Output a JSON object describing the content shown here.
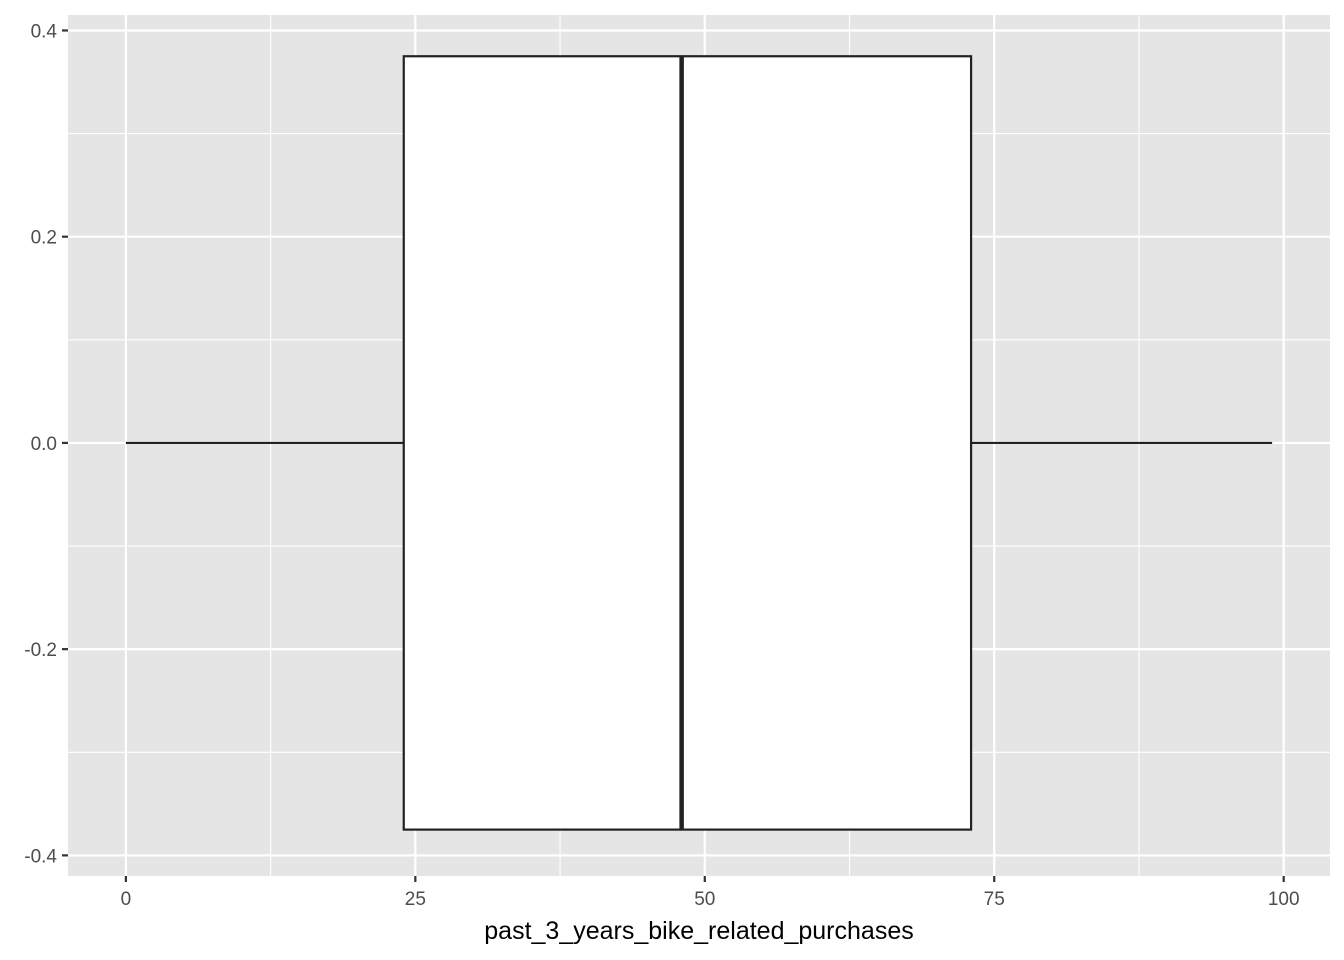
{
  "chart_data": {
    "type": "boxplot",
    "title": "",
    "xlabel": "past_3_years_bike_related_purchases",
    "ylabel": "",
    "xlim": [
      -5,
      104
    ],
    "ylim": [
      -0.42,
      0.415
    ],
    "x_ticks": [
      0,
      25,
      50,
      75,
      100
    ],
    "x_tick_labels": [
      "0",
      "25",
      "50",
      "75",
      "100"
    ],
    "y_ticks": [
      -0.4,
      -0.2,
      0.0,
      0.2,
      0.4
    ],
    "y_tick_labels": [
      "-0.4",
      "-0.2",
      "0.0",
      "0.2",
      "0.4"
    ],
    "grid": true,
    "legend": "none",
    "box": {
      "min": 0,
      "q1": 24,
      "median": 48,
      "q3": 73,
      "max": 99,
      "y_center": 0,
      "half_width": 0.375
    },
    "colors": {
      "panel_background": "#e5e5e5",
      "grid_line": "#ffffff",
      "box_fill": "#ffffff",
      "box_stroke": "#222222",
      "tick_label": "#4d4d4d",
      "axis_title": "#000000"
    }
  }
}
